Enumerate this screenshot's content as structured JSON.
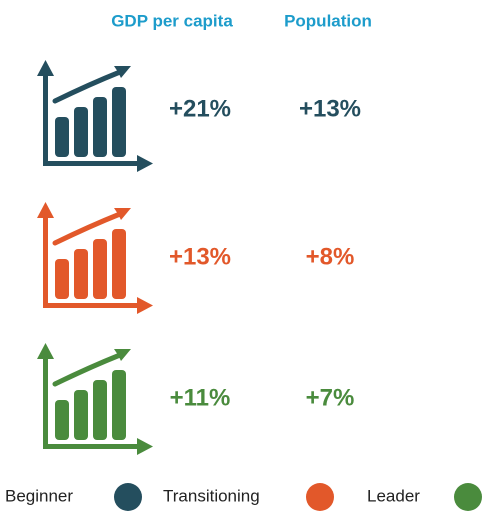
{
  "header": {
    "columns": [
      "GDP per capita",
      "Population"
    ],
    "color": "#1d9ccb"
  },
  "rows": [
    {
      "gdp": "+21%",
      "population": "+13%",
      "color": "#244e5e"
    },
    {
      "gdp": "+13%",
      "population": "+8%",
      "color": "#e2582a"
    },
    {
      "gdp": "+11%",
      "population": "+7%",
      "color": "#4a8b3d"
    }
  ],
  "legend": [
    {
      "label": "Beginner",
      "color": "#244e5e"
    },
    {
      "label": "Transitioning",
      "color": "#e2582a"
    },
    {
      "label": "Leader",
      "color": "#4a8b3d"
    }
  ]
}
